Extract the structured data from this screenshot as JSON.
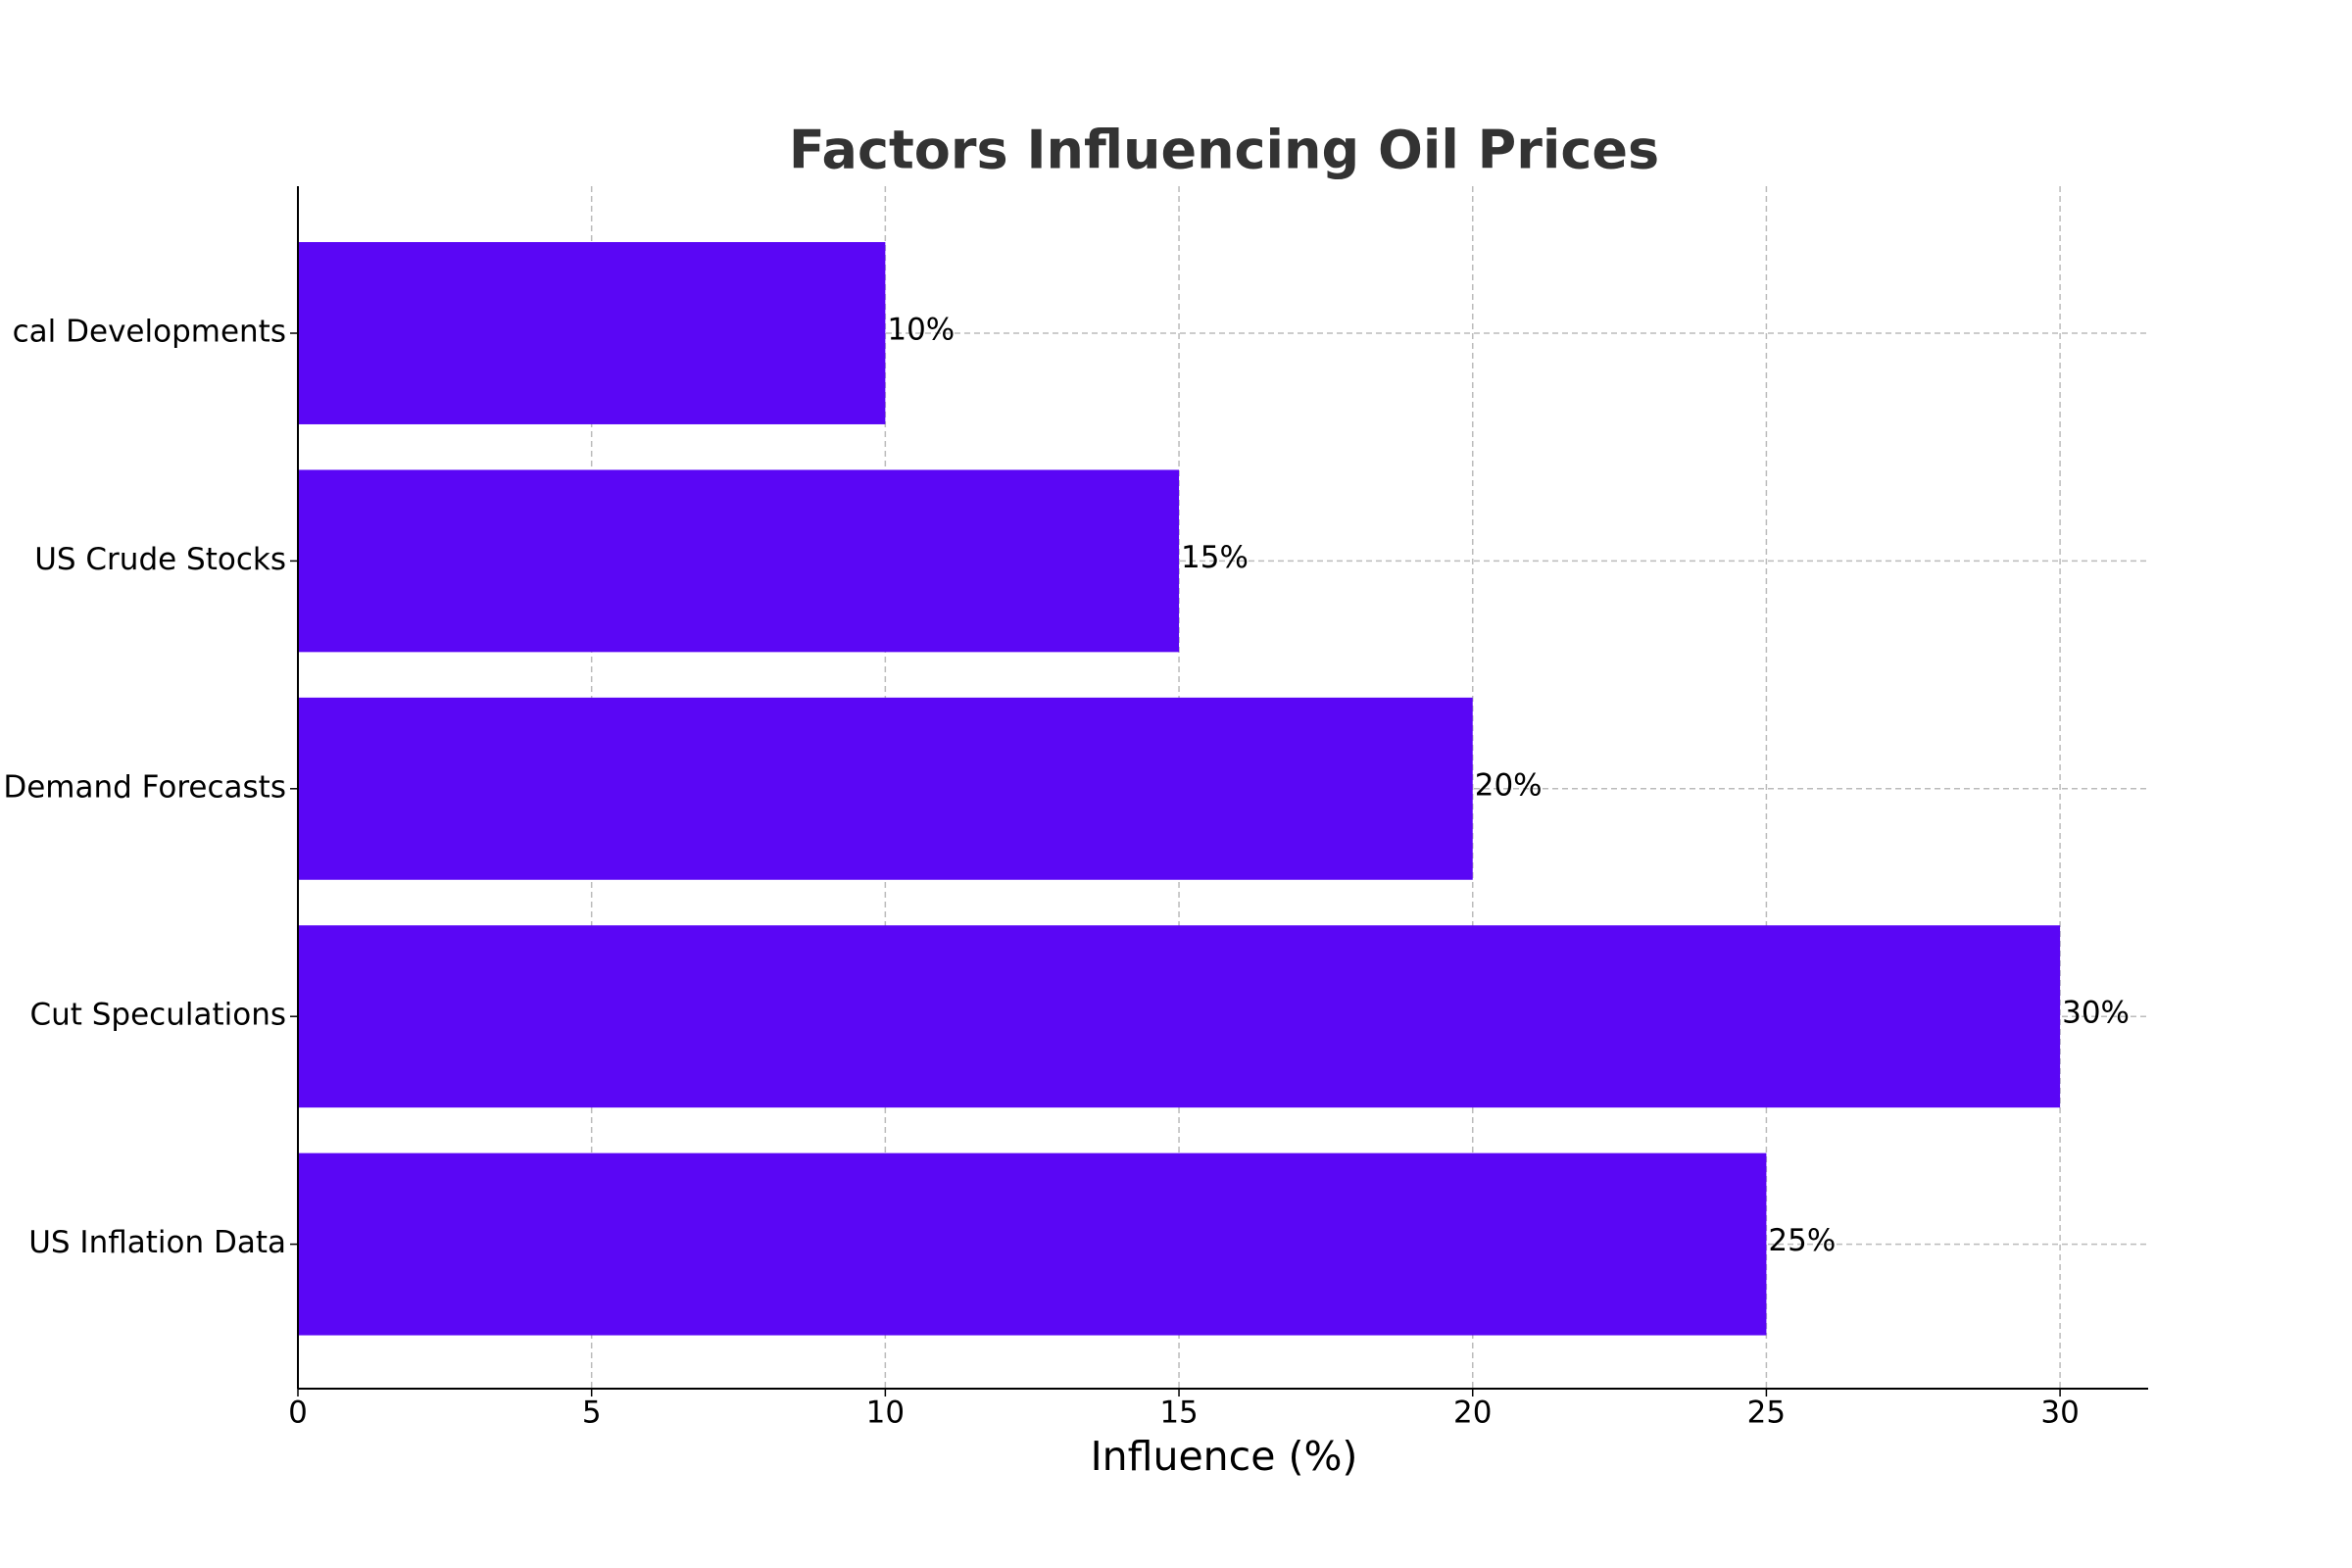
{
  "chart_data": {
    "type": "barh",
    "title": "Factors Influencing Oil Prices",
    "x_label": "Influence (%)",
    "categories": [
      "cal Developments",
      "US Crude Stocks",
      "Demand Forecasts",
      "Cut Speculations",
      "US Inflation Data"
    ],
    "values": [
      10,
      15,
      20,
      30,
      25
    ],
    "value_labels": [
      "10%",
      "15%",
      "20%",
      "30%",
      "25%"
    ],
    "color": "#5a06f5",
    "xlim": [
      0,
      31.5
    ],
    "xticks": [
      0,
      5,
      10,
      15,
      20,
      25,
      30
    ],
    "grid": true
  }
}
